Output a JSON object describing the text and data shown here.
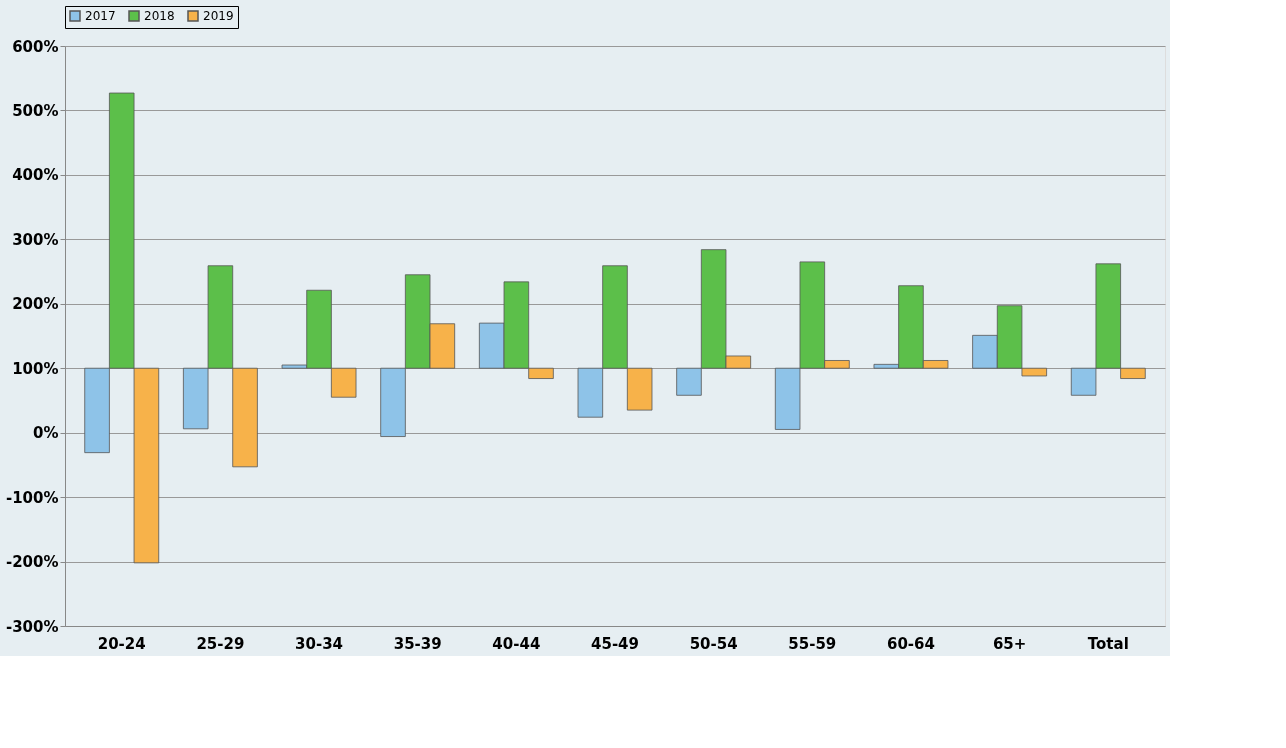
{
  "chart_data": {
    "type": "bar",
    "categories": [
      "20-24",
      "25-29",
      "30-34",
      "35-39",
      "40-44",
      "45-49",
      "50-54",
      "55-59",
      "60-64",
      "65+",
      "Total"
    ],
    "series": [
      {
        "name": "2017",
        "color": "#8ec3e8",
        "base": [
          100,
          100,
          100,
          100,
          100,
          100,
          100,
          100,
          100,
          100,
          100
        ],
        "values": [
          -131,
          -94,
          5,
          -106,
          70,
          -76,
          -42,
          -95,
          6,
          51,
          -42
        ]
      },
      {
        "name": "2018",
        "color": "#5cbf4a",
        "base": [
          100,
          100,
          100,
          100,
          100,
          100,
          100,
          100,
          100,
          100,
          100
        ],
        "values": [
          427,
          159,
          121,
          145,
          134,
          159,
          184,
          165,
          128,
          97,
          162
        ]
      },
      {
        "name": "2019",
        "color": "#f7b24a",
        "base": [
          100,
          100,
          100,
          100,
          100,
          100,
          100,
          100,
          100,
          100,
          100
        ],
        "values": [
          -302,
          -153,
          -45,
          69,
          -16,
          -65,
          19,
          12,
          12,
          -12,
          -16
        ]
      }
    ],
    "ylim": [
      -300,
      600
    ],
    "yticks": [
      {
        "value": -300,
        "label": "-300%"
      },
      {
        "value": -200,
        "label": "-200%"
      },
      {
        "value": -100,
        "label": "-100%"
      },
      {
        "value": 0,
        "label": "0%"
      },
      {
        "value": 100,
        "label": "100%"
      },
      {
        "value": 200,
        "label": "200%"
      },
      {
        "value": 300,
        "label": "300%"
      },
      {
        "value": 400,
        "label": "400%"
      },
      {
        "value": 500,
        "label": "500%"
      },
      {
        "value": 600,
        "label": "600%"
      }
    ],
    "grid": "y",
    "legend": "top"
  }
}
